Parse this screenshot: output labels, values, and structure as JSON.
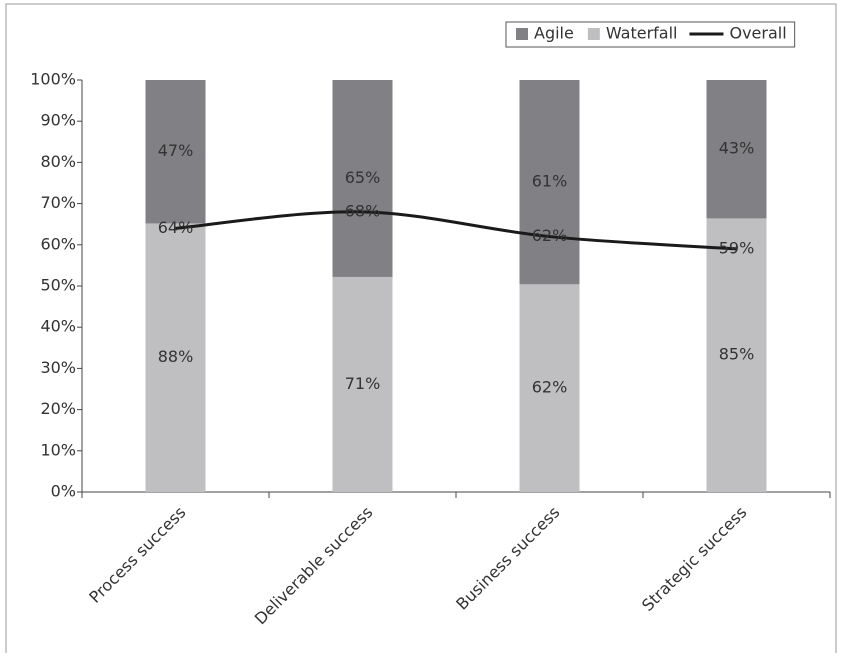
{
  "chart_data": {
    "type": "bar",
    "stacking": "percent",
    "categories": [
      "Process success",
      "Deliverable success",
      "Business success",
      "Strategic success"
    ],
    "series": [
      {
        "name": "Agile",
        "type": "bar",
        "color": "#818185",
        "values": [
          47,
          65,
          61,
          43
        ],
        "value_labels": [
          "47%",
          "65%",
          "61%",
          "43%"
        ]
      },
      {
        "name": "Waterfall",
        "type": "bar",
        "color": "#bfbfc1",
        "values": [
          88,
          71,
          62,
          85
        ],
        "value_labels": [
          "88%",
          "71%",
          "62%",
          "85%"
        ]
      },
      {
        "name": "Overall",
        "type": "line",
        "color": "#1a1a1a",
        "values": [
          64,
          68,
          62,
          59
        ],
        "value_labels": [
          "64%",
          "68%",
          "62%",
          "59%"
        ]
      }
    ],
    "ylim": [
      0,
      100
    ],
    "yticks": [
      {
        "value": 0,
        "label": "0%"
      },
      {
        "value": 10,
        "label": "10%"
      },
      {
        "value": 20,
        "label": "20%"
      },
      {
        "value": 30,
        "label": "30%"
      },
      {
        "value": 40,
        "label": "40%"
      },
      {
        "value": 50,
        "label": "50%"
      },
      {
        "value": 60,
        "label": "60%"
      },
      {
        "value": 70,
        "label": "70%"
      },
      {
        "value": 80,
        "label": "80%"
      },
      {
        "value": 90,
        "label": "90%"
      },
      {
        "value": 100,
        "label": "100%"
      }
    ],
    "legend": "top-right"
  }
}
